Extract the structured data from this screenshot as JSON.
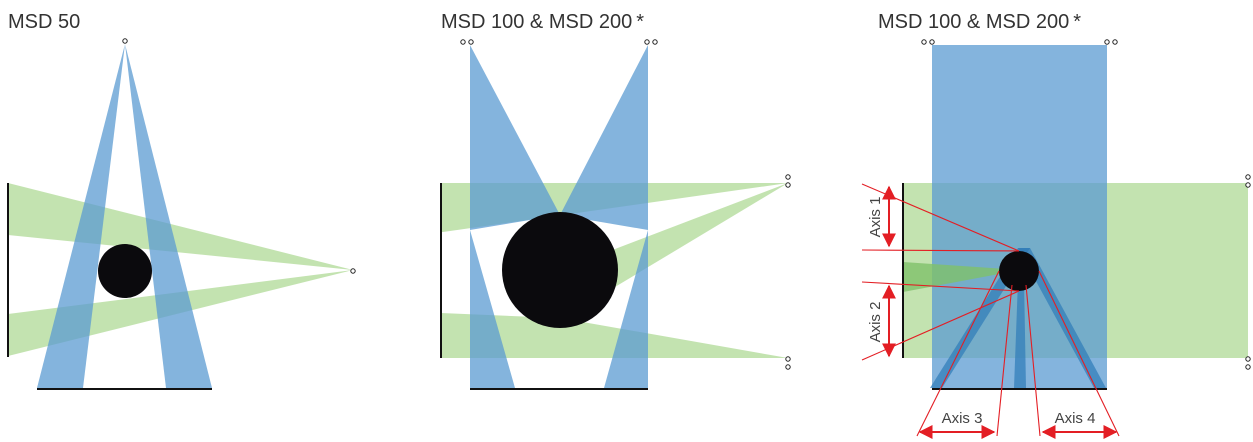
{
  "panels": [
    {
      "title": "MSD 50"
    },
    {
      "title": "MSD 100 & MSD 200",
      "note": "*"
    },
    {
      "title": "MSD 100 & MSD 200",
      "note": "*"
    }
  ],
  "axes": {
    "axis1": "Axis 1",
    "axis2": "Axis 2",
    "axis3": "Axis 3",
    "axis4": "Axis 4"
  },
  "colors": {
    "blue_beam": "#5b9bd1",
    "green_beam": "#a9d78f",
    "object": "#0b0a0d",
    "dimension": "#e31e24"
  }
}
